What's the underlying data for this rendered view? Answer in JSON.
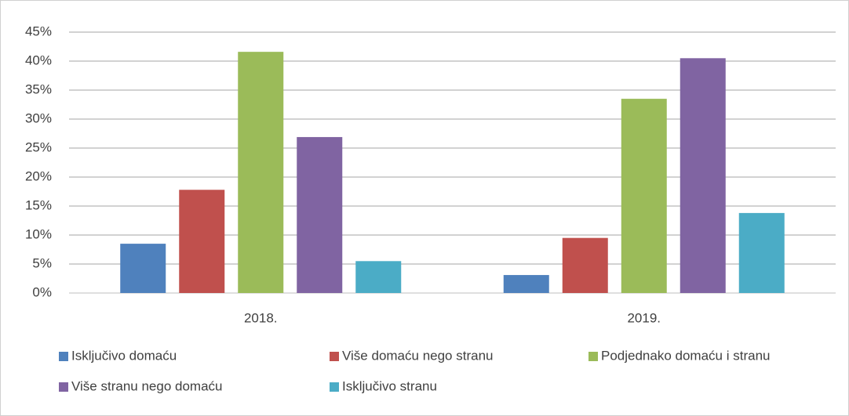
{
  "chart_data": {
    "type": "bar",
    "categories": [
      "2018.",
      "2019."
    ],
    "series": [
      {
        "name": "Isključivo domaću",
        "color": "#4f81bd",
        "values": [
          8.5,
          3.1
        ]
      },
      {
        "name": "Više domaću nego stranu",
        "color": "#c0504d",
        "values": [
          17.8,
          9.5
        ]
      },
      {
        "name": "Podjednako domaću i stranu",
        "color": "#9bbb59",
        "values": [
          41.6,
          33.5
        ]
      },
      {
        "name": "Više stranu nego domaću",
        "color": "#8064a2",
        "values": [
          26.9,
          40.5
        ]
      },
      {
        "name": "Isključivo stranu",
        "color": "#4bacc6",
        "values": [
          5.5,
          13.8
        ]
      }
    ],
    "ylim": [
      0,
      45
    ],
    "yticks": [
      {
        "value": 0,
        "label": "0%"
      },
      {
        "value": 5,
        "label": "5%"
      },
      {
        "value": 10,
        "label": "10%"
      },
      {
        "value": 15,
        "label": "15%"
      },
      {
        "value": 20,
        "label": "20%"
      },
      {
        "value": 25,
        "label": "25%"
      },
      {
        "value": 30,
        "label": "30%"
      },
      {
        "value": 35,
        "label": "35%"
      },
      {
        "value": 40,
        "label": "40%"
      },
      {
        "value": 45,
        "label": "45%"
      }
    ],
    "grid": true,
    "legend": "bottom"
  }
}
